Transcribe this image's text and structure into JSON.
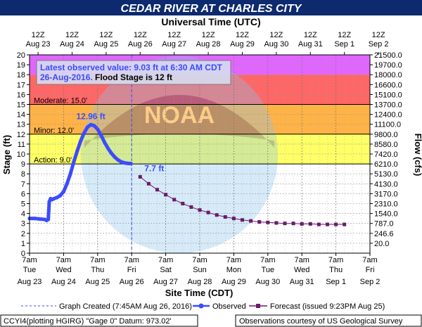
{
  "header": {
    "title": "CEDAR RIVER AT CHARLES CITY",
    "top_axis_title": "Universal Time (UTC)",
    "bg": "#0d2a6e",
    "fg": "#ffffff"
  },
  "chart_data": {
    "type": "line",
    "y_left_label": "Stage (ft)",
    "y_right_label": "Flow (cfs)",
    "x_label": "Site Time (CDT)",
    "ylim": [
      0,
      20
    ],
    "y_ticks": [
      "0",
      "1",
      "2",
      "3",
      "4",
      "5",
      "6",
      "7",
      "8",
      "9",
      "10",
      "11",
      "12",
      "13",
      "14",
      "15",
      "16",
      "17",
      "18",
      "19",
      "20"
    ],
    "flow_ticks": [
      "20.0",
      "246.6",
      "787.0",
      "1540.0",
      "2310.0",
      "3170.0",
      "4130.0",
      "5130.0",
      "6210.0",
      "7420.0",
      "8580.0",
      "9800.0",
      "11100.0",
      "12400.0",
      "13700.0",
      "15100.0",
      "16600.0",
      "18000.0",
      "19700.0",
      "21500.0"
    ],
    "top_ticks": [
      {
        "hour": "12Z",
        "date": "Aug 23"
      },
      {
        "hour": "12Z",
        "date": "Aug 24"
      },
      {
        "hour": "12Z",
        "date": "Aug 25"
      },
      {
        "hour": "12Z",
        "date": "Aug 26"
      },
      {
        "hour": "12Z",
        "date": "Aug 27"
      },
      {
        "hour": "12Z",
        "date": "Aug 28"
      },
      {
        "hour": "12Z",
        "date": "Aug 29"
      },
      {
        "hour": "12Z",
        "date": "Aug 30"
      },
      {
        "hour": "12Z",
        "date": "Aug 31"
      },
      {
        "hour": "12Z",
        "date": "Sep 1"
      },
      {
        "hour": "12Z",
        "date": "Sep 2"
      }
    ],
    "bottom_ticks": [
      {
        "time": "7am",
        "day": "Tue",
        "date": "Aug 23"
      },
      {
        "time": "7am",
        "day": "Wed",
        "date": "Aug 24"
      },
      {
        "time": "7am",
        "day": "Thu",
        "date": "Aug 25"
      },
      {
        "time": "7am",
        "day": "Fri",
        "date": "Aug 26"
      },
      {
        "time": "7am",
        "day": "Sat",
        "date": "Aug 27"
      },
      {
        "time": "7am",
        "day": "Sun",
        "date": "Aug 28"
      },
      {
        "time": "7am",
        "day": "Mon",
        "date": "Aug 29"
      },
      {
        "time": "7am",
        "day": "Tue",
        "date": "Aug 30"
      },
      {
        "time": "7am",
        "day": "Wed",
        "date": "Aug 31"
      },
      {
        "time": "7am",
        "day": "Thu",
        "date": "Sep 1"
      },
      {
        "time": "7am",
        "day": "Fri",
        "date": "Sep 2"
      }
    ],
    "x_range_days": [
      0,
      10
    ],
    "bands": [
      {
        "from": 9,
        "to": 12,
        "color": "#ffff66"
      },
      {
        "from": 12,
        "to": 15,
        "color": "#ffb347"
      },
      {
        "from": 15,
        "to": 18,
        "color": "#ff6666"
      },
      {
        "from": 18,
        "to": 20,
        "color": "#e066ff"
      }
    ],
    "stage_lines": [
      {
        "level": 9,
        "label": "Action: 9.0'"
      },
      {
        "level": 12,
        "label": "Minor: 12.0'"
      },
      {
        "level": 15,
        "label": "Moderate: 15.0'"
      }
    ],
    "created_day": 3,
    "observed": {
      "name": "Observed",
      "color": "#3b4cff",
      "x": [
        0,
        0.15,
        0.3,
        0.45,
        0.5,
        0.55,
        0.58,
        0.62,
        0.66,
        0.72,
        0.8,
        0.9,
        1.0,
        1.1,
        1.2,
        1.3,
        1.4,
        1.5,
        1.6,
        1.7,
        1.8,
        1.9,
        2.0,
        2.1,
        2.2,
        2.3,
        2.4,
        2.5,
        2.6,
        2.7,
        2.8,
        2.9,
        2.98
      ],
      "y": [
        3.5,
        3.5,
        3.45,
        3.4,
        3.3,
        3.4,
        5.2,
        5.5,
        5.4,
        5.5,
        5.6,
        5.8,
        6.2,
        7.0,
        8.0,
        9.2,
        10.3,
        11.3,
        12.1,
        12.7,
        12.96,
        12.85,
        12.5,
        11.9,
        11.2,
        10.6,
        10.1,
        9.7,
        9.4,
        9.2,
        9.1,
        9.05,
        9.03
      ]
    },
    "forecast": {
      "name": "Forecast",
      "color": "#6a1b6a",
      "x": [
        3.25,
        3.5,
        3.75,
        4.0,
        4.25,
        4.5,
        4.75,
        5.0,
        5.25,
        5.5,
        5.75,
        6.0,
        6.25,
        6.5,
        6.75,
        7.0,
        7.25,
        7.5,
        7.75,
        8.0,
        8.25,
        8.5,
        8.75,
        9.0,
        9.25
      ],
      "y": [
        7.7,
        7.0,
        6.4,
        5.9,
        5.4,
        5.0,
        4.65,
        4.35,
        4.1,
        3.85,
        3.65,
        3.5,
        3.35,
        3.25,
        3.15,
        3.1,
        3.05,
        3.0,
        3.0,
        2.95,
        2.95,
        2.9,
        2.9,
        2.9,
        2.9
      ]
    },
    "annotations": [
      {
        "text": "12.96 ft",
        "x": 1.8,
        "y": 12.96,
        "color": "#3b4cff"
      },
      {
        "text": "7.7 ft",
        "x": 3.25,
        "y": 7.7,
        "color": "#3b4cff"
      }
    ],
    "info_box": {
      "line1": "Latest observed value: 9.03 ft at 6:30 AM CDT",
      "line2_date": "26-Aug-2016.",
      "line2_rest": " Flood Stage is 12 ft"
    },
    "legend": [
      {
        "label": "Graph Created (7:45AM Aug 26, 2016)",
        "style": "dashed",
        "color": "#3b4cff"
      },
      {
        "label": "Observed",
        "style": "line-dot",
        "color": "#3b4cff"
      },
      {
        "label": "Forecast (issued 9:23PM Aug 25)",
        "style": "line-square",
        "color": "#6a1b6a"
      }
    ]
  },
  "footer": {
    "left": "CCYI4(plotting HGIRG) \"Gage 0\" Datum: 973.02'",
    "right": "Observations courtesy of US Geological Survey"
  }
}
